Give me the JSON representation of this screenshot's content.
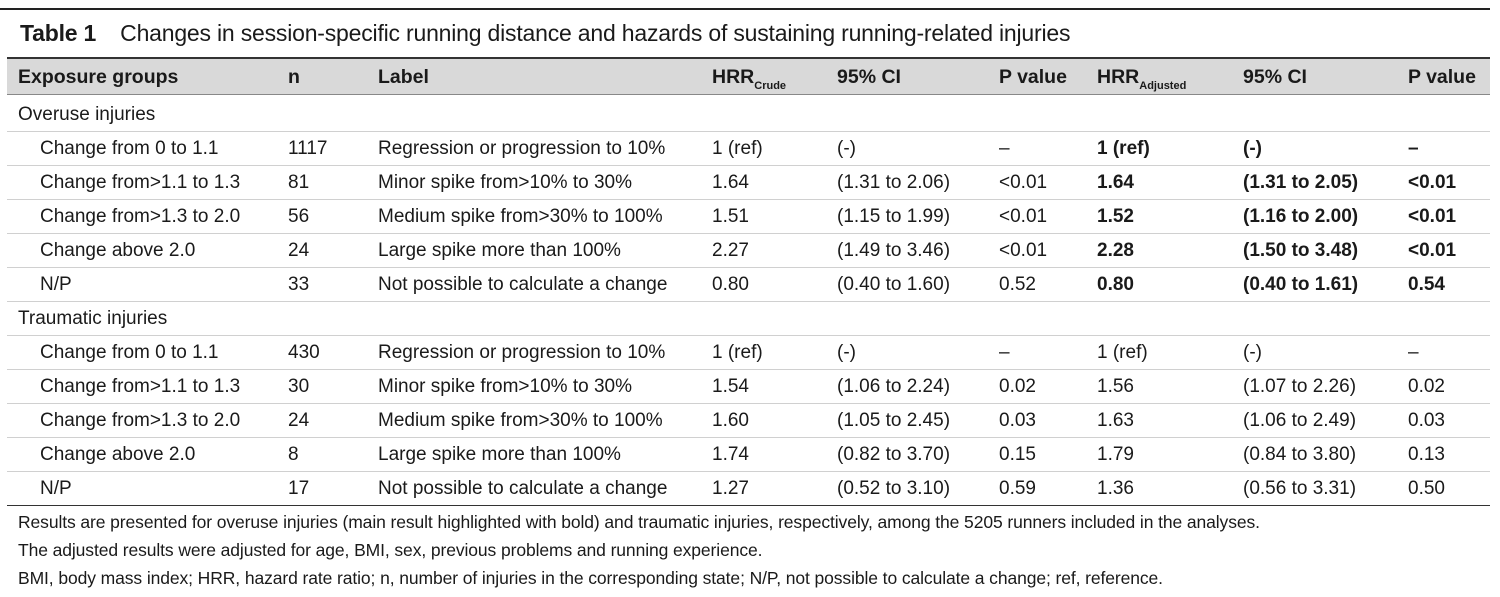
{
  "table": {
    "number": "Table 1",
    "title": "Changes in session-specific running distance and hazards of sustaining running-related injuries",
    "headers": {
      "group": "Exposure groups",
      "n": "n",
      "label": "Label",
      "hrr_crude_main": "HRR",
      "hrr_crude_sub": "Crude",
      "ci_crude": "95% CI",
      "p_crude": "P value",
      "hrr_adj_main": "HRR",
      "hrr_adj_sub": "Adjusted",
      "ci_adj": "95% CI",
      "p_adj": "P value"
    },
    "sections": [
      {
        "name": "Overuse injuries",
        "rows": [
          {
            "group": "Change from 0 to 1.1",
            "n": "1117",
            "label": "Regression or progression to 10%",
            "hrr_crude": "1 (ref)",
            "ci_crude": "(-)",
            "p_crude": "–",
            "hrr_adj": "1 (ref)",
            "ci_adj": "(-)",
            "p_adj": "–"
          },
          {
            "group": "Change from>1.1 to 1.3",
            "n": "81",
            "label": "Minor spike from>10% to 30%",
            "hrr_crude": "1.64",
            "ci_crude": "(1.31 to 2.06)",
            "p_crude": "<0.01",
            "hrr_adj": "1.64",
            "ci_adj": "(1.31 to 2.05)",
            "p_adj": "<0.01"
          },
          {
            "group": "Change from>1.3 to 2.0",
            "n": "56",
            "label": "Medium spike from>30% to 100%",
            "hrr_crude": "1.51",
            "ci_crude": "(1.15 to 1.99)",
            "p_crude": "<0.01",
            "hrr_adj": "1.52",
            "ci_adj": "(1.16 to 2.00)",
            "p_adj": "<0.01"
          },
          {
            "group": "Change above 2.0",
            "n": "24",
            "label": "Large spike more than 100%",
            "hrr_crude": "2.27",
            "ci_crude": "(1.49 to 3.46)",
            "p_crude": "<0.01",
            "hrr_adj": "2.28",
            "ci_adj": "(1.50 to 3.48)",
            "p_adj": "<0.01"
          },
          {
            "group": "N/P",
            "n": "33",
            "label": "Not possible to calculate a change",
            "hrr_crude": "0.80",
            "ci_crude": "(0.40 to 1.60)",
            "p_crude": "0.52",
            "hrr_adj": "0.80",
            "ci_adj": "(0.40 to 1.61)",
            "p_adj": "0.54"
          }
        ]
      },
      {
        "name": "Traumatic injuries",
        "rows": [
          {
            "group": "Change from 0 to 1.1",
            "n": "430",
            "label": "Regression or progression to 10%",
            "hrr_crude": "1 (ref)",
            "ci_crude": "(-)",
            "p_crude": "–",
            "hrr_adj": "1 (ref)",
            "ci_adj": "(-)",
            "p_adj": "–"
          },
          {
            "group": "Change from>1.1 to 1.3",
            "n": "30",
            "label": "Minor spike from>10% to 30%",
            "hrr_crude": "1.54",
            "ci_crude": "(1.06 to 2.24)",
            "p_crude": "0.02",
            "hrr_adj": "1.56",
            "ci_adj": "(1.07 to 2.26)",
            "p_adj": "0.02"
          },
          {
            "group": "Change from>1.3 to 2.0",
            "n": "24",
            "label": "Medium spike from>30% to 100%",
            "hrr_crude": "1.60",
            "ci_crude": "(1.05 to 2.45)",
            "p_crude": "0.03",
            "hrr_adj": "1.63",
            "ci_adj": "(1.06 to 2.49)",
            "p_adj": "0.03"
          },
          {
            "group": "Change above 2.0",
            "n": "8",
            "label": "Large spike more than 100%",
            "hrr_crude": "1.74",
            "ci_crude": "(0.82 to 3.70)",
            "p_crude": "0.15",
            "hrr_adj": "1.79",
            "ci_adj": "(0.84 to 3.80)",
            "p_adj": "0.13"
          },
          {
            "group": "N/P",
            "n": "17",
            "label": "Not possible to calculate a change",
            "hrr_crude": "1.27",
            "ci_crude": "(0.52 to 3.10)",
            "p_crude": "0.59",
            "hrr_adj": "1.36",
            "ci_adj": "(0.56 to 3.31)",
            "p_adj": "0.50"
          }
        ]
      }
    ],
    "footnotes": [
      "Results are presented for overuse injuries (main result highlighted with bold) and traumatic injuries, respectively, among the 5205 runners included in the analyses.",
      "The adjusted results were adjusted for age, BMI, sex, previous problems and running experience.",
      "BMI, body mass index; HRR, hazard rate ratio; n, number of injuries in the corresponding state; N/P, not possible to calculate a change; ref, reference."
    ]
  }
}
